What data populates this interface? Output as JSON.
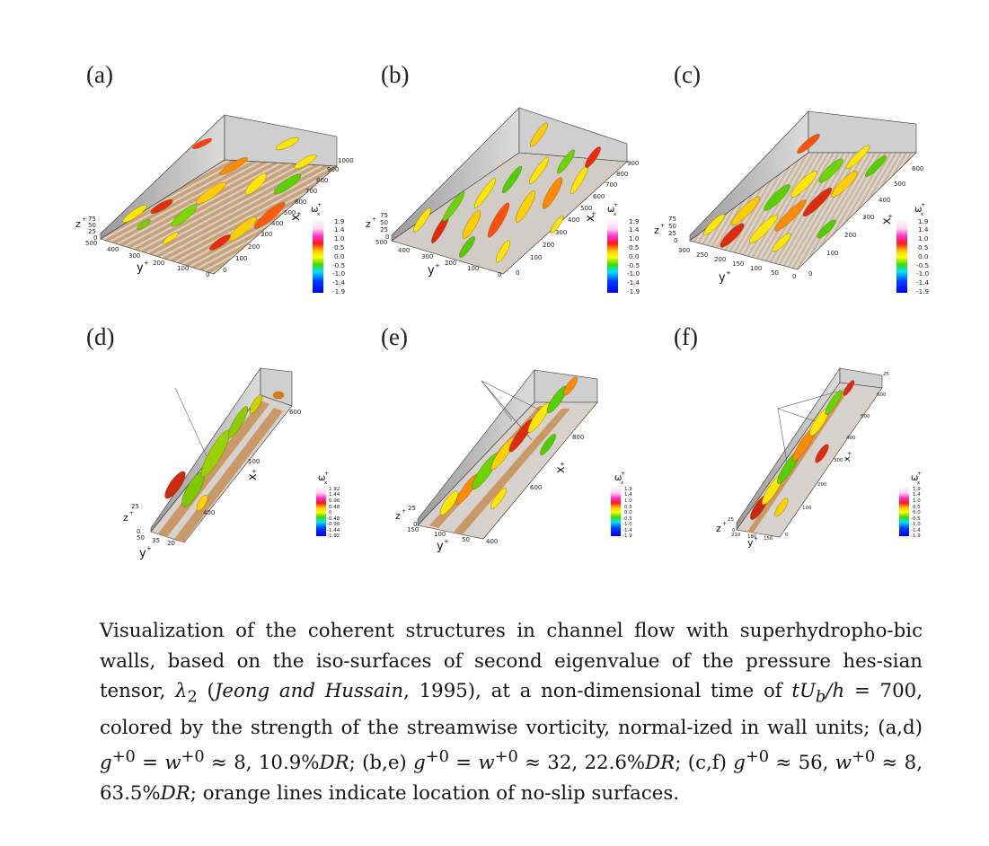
{
  "figure": {
    "panel_labels": [
      "(a)",
      "(b)",
      "(c)",
      "(d)",
      "(e)",
      "(f)"
    ],
    "panels": [
      {
        "z_label": "z",
        "z_sup": "+",
        "z_ticks": [
          "75",
          "50",
          "25",
          "0"
        ],
        "y_label": "y",
        "y_sup": "+",
        "y_ticks": [
          "500",
          "400",
          "300",
          "200",
          "100",
          "0"
        ],
        "x_label": "x",
        "x_sup": "+",
        "x_ticks": [
          "1000",
          "900",
          "800",
          "700",
          "600",
          "500",
          "400",
          "300",
          "200",
          "100",
          "0"
        ],
        "legend_title": "ω",
        "legend_sub": "x",
        "legend_sup": "+",
        "legend_values": [
          "1.9",
          "1.4",
          "1.0",
          "0.5",
          "0.0",
          "-0.5",
          "-1.0",
          "-1.4",
          "-1.9"
        ]
      },
      {
        "z_label": "z",
        "z_sup": "+",
        "z_ticks": [
          "75",
          "50",
          "25",
          "0"
        ],
        "y_label": "y",
        "y_sup": "+",
        "y_ticks": [
          "500",
          "400",
          "300",
          "200",
          "100",
          "0"
        ],
        "x_label": "x",
        "x_sup": "+",
        "x_ticks": [
          "900",
          "800",
          "700",
          "600",
          "500",
          "400",
          "300",
          "200",
          "100",
          "0"
        ],
        "legend_title": "ω",
        "legend_sub": "x",
        "legend_sup": "+",
        "legend_values": [
          "1.9",
          "1.4",
          "1.0",
          "0.5",
          "0.0",
          "-0.5",
          "-1.0",
          "-1.4",
          "-1.9"
        ]
      },
      {
        "z_label": "z",
        "z_sup": "+",
        "z_ticks": [
          "75",
          "50",
          "25",
          "0"
        ],
        "y_label": "y",
        "y_sup": "+",
        "y_ticks": [
          "300",
          "250",
          "200",
          "150",
          "100",
          "50",
          "0"
        ],
        "x_label": "x",
        "x_sup": "+",
        "x_ticks": [
          "600",
          "500",
          "400",
          "300",
          "200",
          "100",
          "0"
        ],
        "legend_title": "ω",
        "legend_sub": "x",
        "legend_sup": "+",
        "legend_values": [
          "1.9",
          "1.4",
          "1.0",
          "0.5",
          "0.0",
          "-0.5",
          "-1.0",
          "-1.4",
          "-1.9"
        ]
      },
      {
        "z_label": "z",
        "z_sup": "+",
        "z_ticks": [
          "25",
          "0"
        ],
        "y_label": "y",
        "y_sup": "+",
        "y_ticks": [
          "50",
          "35",
          "20"
        ],
        "x_label": "x",
        "x_sup": "+",
        "x_ticks": [
          "600",
          "500",
          "400"
        ],
        "legend_title": "ω",
        "legend_sub": "x",
        "legend_sup": "+",
        "legend_values": [
          "1.92",
          "1.44",
          "0.96",
          "0.48",
          "0",
          "-0.48",
          "-0.96",
          "-1.44",
          "-1.92"
        ]
      },
      {
        "z_label": "z",
        "z_sup": "+",
        "z_ticks": [
          "25",
          "0"
        ],
        "y_label": "y",
        "y_sup": "+",
        "y_ticks": [
          "150",
          "100",
          "50"
        ],
        "x_label": "x",
        "x_sup": "+",
        "x_ticks": [
          "800",
          "600",
          "400"
        ],
        "legend_title": "ω",
        "legend_sub": "x",
        "legend_sup": "+",
        "legend_values": [
          "1.9",
          "1.4",
          "1.0",
          "0.5",
          "0.0",
          "-0.5",
          "-1.0",
          "-1.4",
          "-1.9"
        ]
      },
      {
        "z_label": "z",
        "z_sup": "+",
        "z_ticks": [
          "25",
          "0"
        ],
        "y_label": "y",
        "y_sup": "+",
        "y_ticks": [
          "210",
          "180",
          "150"
        ],
        "x_label": "x",
        "x_sup": "+",
        "x_ticks": [
          "25",
          "600",
          "500",
          "400",
          "300",
          "200",
          "100",
          "0"
        ],
        "legend_title": "ω",
        "legend_sub": "x",
        "legend_sup": "+",
        "legend_values": [
          "1.9",
          "1.4",
          "1.0",
          "0.5",
          "0.0",
          "-0.5",
          "-1.0",
          "-1.4",
          "-1.9"
        ]
      }
    ],
    "colormap": [
      "#ffffff",
      "#ffd1f0",
      "#ff33cc",
      "#ff2020",
      "#ffcc00",
      "#ffff00",
      "#44dd00",
      "#00ddff",
      "#0040ff",
      "#0000ff"
    ]
  },
  "caption": {
    "t1": "Visualization of the coherent structures in channel flow with superhydropho-bic walls, based on the iso-surfaces of second eigenvalue of the pressure hes-sian tensor, ",
    "lambda": "λ",
    "lambda_sub": "2",
    "paren_open": " (",
    "cite": "Jeong and Hussain",
    "t2": ", 1995), at a non-dimensional time of ",
    "t_var": "tU",
    "b_sub": "b",
    "h_part": "/h",
    "t3": " = 700, colored by the strength of the streamwise vorticity, normal-ized in wall units; (a,d) ",
    "g1": "g",
    "sup_p0": "+0",
    "eq": " = ",
    "w1": "w",
    "t4": " ≈ 8, 10.9%",
    "dr": "DR",
    "t5": "; (b,e) ",
    "t6": " ≈ 32, 22.6%",
    "t7": "; (c,f) ",
    "t8": " ≈ 56, ",
    "t9": " ≈ 8, 63.5%",
    "t10": "; orange lines indicate location of no-slip surfaces."
  }
}
